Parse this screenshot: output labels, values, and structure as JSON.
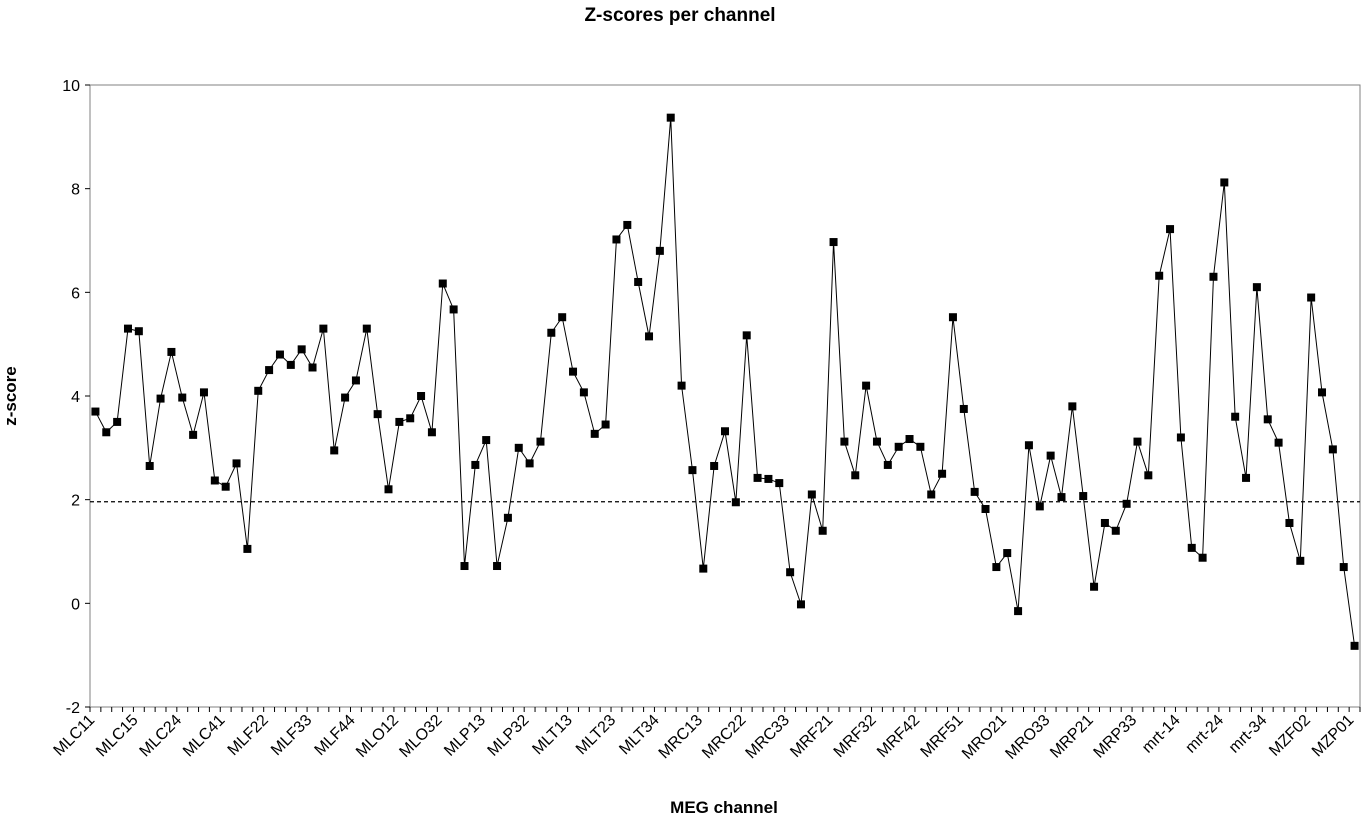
{
  "chart_data": {
    "type": "line",
    "title": "Z-scores per channel",
    "xlabel": "MEG channel",
    "ylabel": "z-score",
    "ylim": [
      -2,
      10
    ],
    "yticks": [
      -2,
      0,
      2,
      4,
      6,
      8,
      10
    ],
    "grid": false,
    "legend": "none",
    "reference_line": {
      "y": 1.96,
      "style": "dashed"
    },
    "category_labels": [
      "MLC11",
      "MLC15",
      "MLC24",
      "MLC41",
      "MLF22",
      "MLF33",
      "MLF44",
      "MLO12",
      "MLO32",
      "MLP13",
      "MLP32",
      "MLT13",
      "MLT23",
      "MLT34",
      "MRC13",
      "MRC22",
      "MRC33",
      "MRF21",
      "MRF32",
      "MRF42",
      "MRF51",
      "MRO21",
      "MRO33",
      "MRP21",
      "MRP33",
      "mrt-14",
      "mrt-24",
      "mrt-34",
      "MZF02",
      "MZP01"
    ],
    "label_every": 4,
    "series": [
      {
        "marker": "square",
        "color": "#000000",
        "values": [
          3.7,
          3.3,
          3.5,
          5.3,
          5.25,
          2.65,
          3.95,
          4.85,
          3.97,
          3.25,
          4.07,
          2.37,
          2.25,
          2.7,
          1.05,
          4.1,
          4.5,
          4.8,
          4.6,
          4.9,
          4.55,
          5.3,
          2.95,
          3.97,
          4.3,
          5.3,
          3.65,
          2.2,
          3.5,
          3.57,
          4.0,
          3.3,
          6.17,
          5.67,
          0.72,
          2.67,
          3.15,
          0.72,
          1.65,
          3.0,
          2.7,
          3.12,
          5.22,
          5.52,
          4.47,
          4.07,
          3.27,
          3.45,
          7.02,
          7.3,
          6.2,
          5.15,
          6.8,
          9.37,
          4.2,
          2.57,
          0.67,
          2.65,
          3.32,
          1.95,
          5.17,
          2.42,
          2.4,
          2.32,
          0.6,
          -0.02,
          2.1,
          1.4,
          6.97,
          3.12,
          2.47,
          4.2,
          3.12,
          2.67,
          3.02,
          3.17,
          3.02,
          2.1,
          2.5,
          5.52,
          3.75,
          2.15,
          1.82,
          0.7,
          0.97,
          -0.15,
          3.05,
          1.87,
          2.85,
          2.05,
          3.8,
          2.07,
          0.32,
          1.55,
          1.4,
          1.92,
          3.12,
          2.47,
          6.32,
          7.22,
          3.2,
          1.07,
          0.88,
          6.3,
          8.12,
          3.6,
          2.42,
          6.1,
          3.55,
          3.1,
          1.55,
          0.82,
          5.9,
          4.07,
          2.97,
          0.7,
          -0.82
        ]
      }
    ]
  }
}
